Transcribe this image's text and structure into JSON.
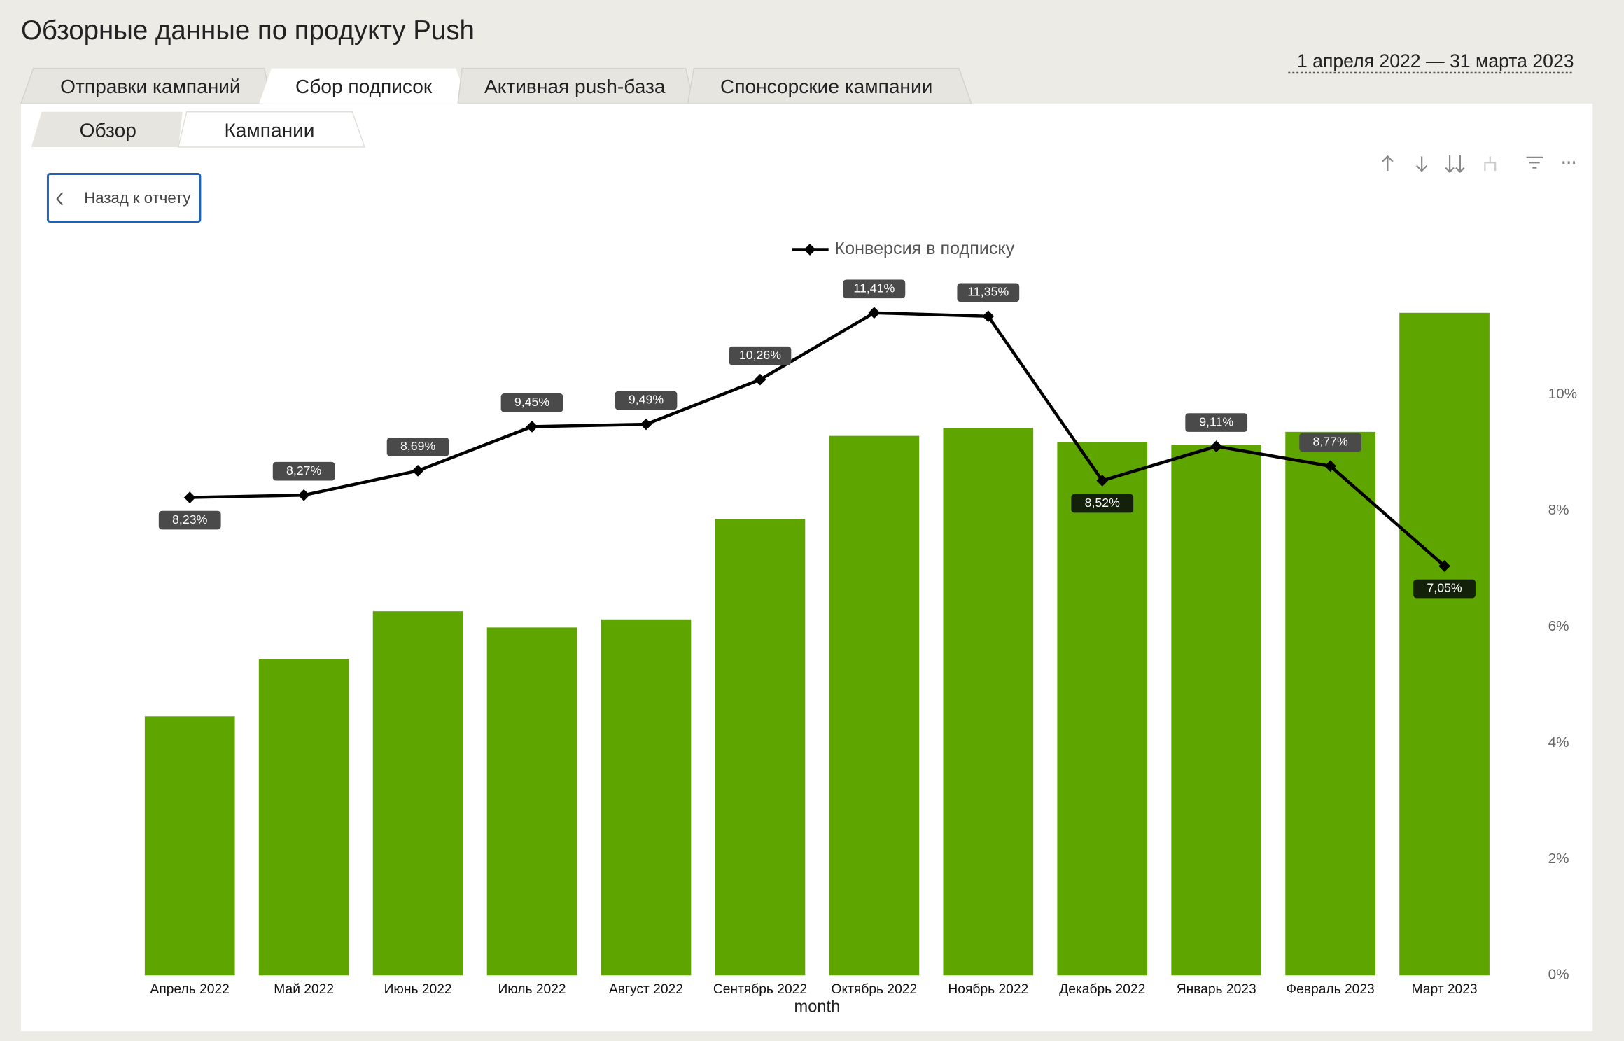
{
  "header": {
    "title": "Обзорные данные по продукту Push",
    "date_range": "1 апреля 2022 — 31 марта 2023"
  },
  "tabs": [
    "Отправки кампаний",
    "Сбор подписок",
    "Активная push-база",
    "Спонсорские кампании"
  ],
  "subtabs": [
    "Обзор",
    "Кампании"
  ],
  "back_button": "Назад к отчету",
  "chart_data": {
    "type": "bar-line",
    "x_label": "month",
    "categories": [
      "Апрель 2022",
      "Май 2022",
      "Июнь 2022",
      "Июль 2022",
      "Август 2022",
      "Сентябрь 2022",
      "Октябрь 2022",
      "Ноябрь 2022",
      "Декабрь 2022",
      "Январь 2023",
      "Февраль 2023",
      "Март 2023"
    ],
    "series": [
      {
        "type": "bar",
        "color": "#5ea500",
        "values": [
          4.46,
          5.44,
          6.27,
          5.99,
          6.13,
          7.86,
          9.29,
          9.43,
          9.18,
          9.14,
          9.36,
          11.41
        ]
      },
      {
        "type": "line",
        "name": "Конверсия в подписку",
        "color": "#000000",
        "values": [
          8.23,
          8.27,
          8.69,
          9.45,
          9.49,
          10.26,
          11.41,
          11.35,
          8.52,
          9.11,
          8.77,
          7.05
        ],
        "value_labels": [
          "8,23%",
          "8,27%",
          "8,69%",
          "9,45%",
          "9,49%",
          "10,26%",
          "11,41%",
          "11,35%",
          "8,52%",
          "9,11%",
          "8,77%",
          "7,05%"
        ]
      }
    ],
    "ylim": [
      0,
      12
    ],
    "yticks": [
      {
        "value": 0,
        "label": "0%"
      },
      {
        "value": 2,
        "label": "2%"
      },
      {
        "value": 4,
        "label": "4%"
      },
      {
        "value": 6,
        "label": "6%"
      },
      {
        "value": 8,
        "label": "8%"
      },
      {
        "value": 10,
        "label": "10%"
      }
    ],
    "legend": "top"
  }
}
